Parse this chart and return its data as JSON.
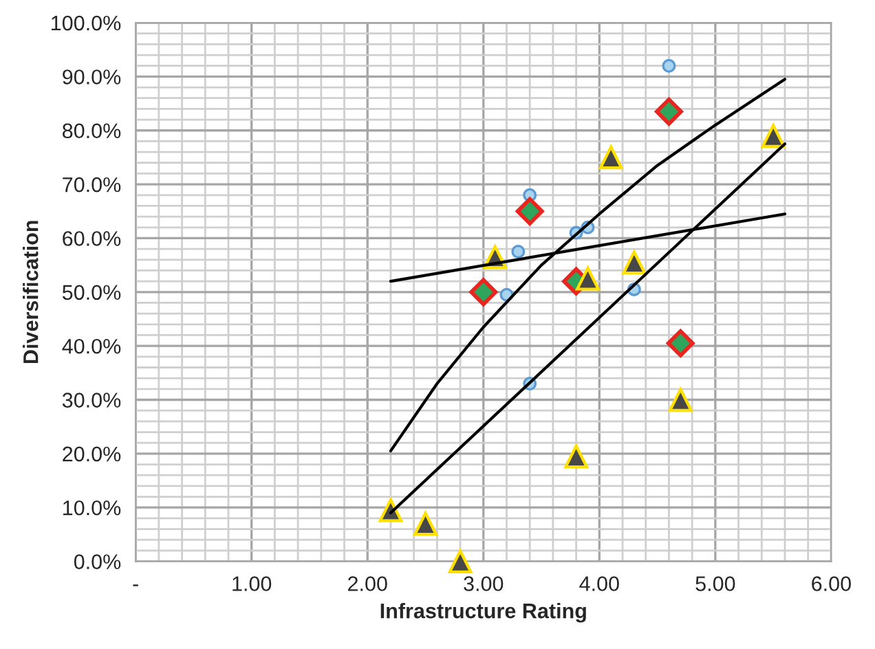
{
  "chart_data": {
    "type": "scatter",
    "xlabel": "Infrastructure Rating",
    "ylabel": "Diversification",
    "xlim": [
      0,
      6
    ],
    "xticks": [
      {
        "value": 0,
        "label": "-"
      },
      {
        "value": 1,
        "label": "1.00"
      },
      {
        "value": 2,
        "label": "2.00"
      },
      {
        "value": 3,
        "label": "3.00"
      },
      {
        "value": 4,
        "label": "4.00"
      },
      {
        "value": 5,
        "label": "5.00"
      },
      {
        "value": 6,
        "label": "6.00"
      }
    ],
    "ylim": [
      0,
      100
    ],
    "yticks": [
      {
        "value": 0,
        "label": "0.0%"
      },
      {
        "value": 10,
        "label": "10.0%"
      },
      {
        "value": 20,
        "label": "20.0%"
      },
      {
        "value": 30,
        "label": "30.0%"
      },
      {
        "value": 40,
        "label": "40.0%"
      },
      {
        "value": 50,
        "label": "50.0%"
      },
      {
        "value": 60,
        "label": "60.0%"
      },
      {
        "value": 70,
        "label": "70.0%"
      },
      {
        "value": 80,
        "label": "80.0%"
      },
      {
        "value": 90,
        "label": "90.0%"
      },
      {
        "value": 100,
        "label": "100.0%"
      }
    ],
    "grid": true,
    "series": [
      {
        "marker": "circle",
        "color": "#a9d3ee",
        "x": [
          4.6,
          3.4,
          3.9,
          3.8,
          3.3,
          3.2,
          4.3,
          3.4
        ],
        "values": [
          92,
          68,
          62,
          61,
          57.5,
          49.5,
          50.5,
          33
        ]
      },
      {
        "marker": "diamond",
        "color": "#2ea55a",
        "x": [
          4.6,
          3.4,
          3.0,
          3.8,
          4.7
        ],
        "values": [
          83.5,
          65,
          50,
          52,
          40.5
        ]
      },
      {
        "marker": "triangle",
        "color": "#474747",
        "x": [
          5.5,
          4.1,
          3.1,
          4.3,
          3.9,
          4.7,
          3.8,
          2.2,
          2.5,
          2.8
        ],
        "values": [
          79,
          75,
          56.5,
          55.5,
          52.5,
          30,
          19.5,
          9.5,
          7,
          0
        ]
      },
      {
        "type": "line",
        "marker": "none",
        "color": "#000000",
        "x": [
          2.2,
          5.6
        ],
        "values": [
          52,
          64.5
        ]
      },
      {
        "type": "line",
        "marker": "none",
        "color": "#000000",
        "x": [
          2.2,
          2.6,
          3.0,
          3.5,
          4.0,
          4.5,
          5.0,
          5.6
        ],
        "values": [
          20.5,
          33,
          43.5,
          55,
          64.5,
          73.5,
          81,
          89.5
        ]
      },
      {
        "type": "line",
        "marker": "none",
        "color": "#000000",
        "x": [
          2.2,
          5.6
        ],
        "values": [
          9,
          77.5
        ]
      }
    ]
  }
}
